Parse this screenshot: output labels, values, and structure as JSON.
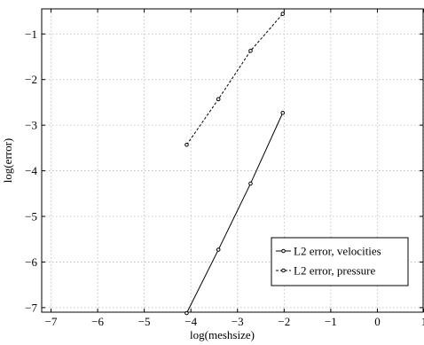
{
  "chart_data": {
    "type": "line",
    "title": "",
    "xlabel": "log(meshsize)",
    "ylabel": "log(error)",
    "xlim": [
      -7.2,
      1
    ],
    "ylim": [
      -7.1,
      -0.45
    ],
    "xticks": [
      -7,
      -6,
      -5,
      -4,
      -3,
      -2,
      -1,
      0,
      1
    ],
    "yticks": [
      -7,
      -6,
      -5,
      -4,
      -3,
      -2,
      -1
    ],
    "xtick_labels": [
      "−7",
      "−6",
      "−5",
      "−4",
      "−3",
      "−2",
      "−1",
      "0",
      "1"
    ],
    "ytick_labels": [
      "−7",
      "−6",
      "−5",
      "−4",
      "−3",
      "−2",
      "−1"
    ],
    "grid": true,
    "legend_position": "bottom-right",
    "series": [
      {
        "name": "L2 error, velocities",
        "line_style": "solid",
        "color": "#000000",
        "x": [
          -4.09,
          -3.41,
          -2.72,
          -2.03
        ],
        "y": [
          -7.12,
          -5.73,
          -4.28,
          -2.73
        ]
      },
      {
        "name": "L2 error, pressure",
        "line_style": "dashed",
        "color": "#000000",
        "x": [
          -4.09,
          -3.41,
          -2.72,
          -2.03
        ],
        "y": [
          -3.43,
          -2.43,
          -1.37,
          -0.56
        ]
      }
    ]
  }
}
